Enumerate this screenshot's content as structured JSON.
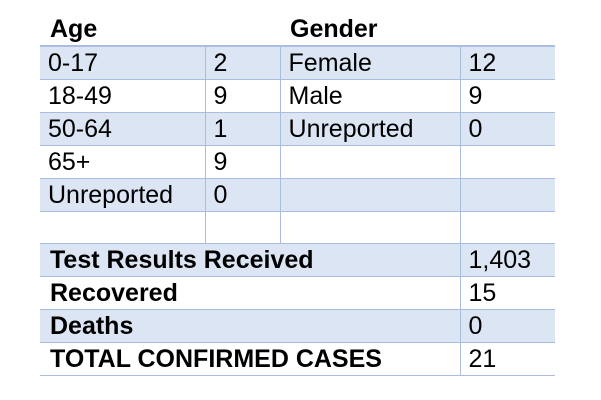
{
  "headers": {
    "age": "Age",
    "gender": "Gender"
  },
  "age_rows": [
    {
      "label": "0-17",
      "count": "2"
    },
    {
      "label": "18-49",
      "count": "9"
    },
    {
      "label": "50-64",
      "count": "1"
    },
    {
      "label": "65+",
      "count": "9"
    },
    {
      "label": "Unreported",
      "count": "0"
    }
  ],
  "gender_rows": [
    {
      "label": "Female",
      "count": "12"
    },
    {
      "label": "Male",
      "count": "9"
    },
    {
      "label": "Unreported",
      "count": "0"
    }
  ],
  "summary": [
    {
      "label": "Test Results Received",
      "value": "1,403"
    },
    {
      "label": "Recovered",
      "value": "15"
    },
    {
      "label": "Deaths",
      "value": "0"
    },
    {
      "label": "TOTAL CONFIRMED CASES",
      "value": "21"
    }
  ],
  "colors": {
    "band": "#dbe5f3",
    "rule": "#a9bde0"
  }
}
